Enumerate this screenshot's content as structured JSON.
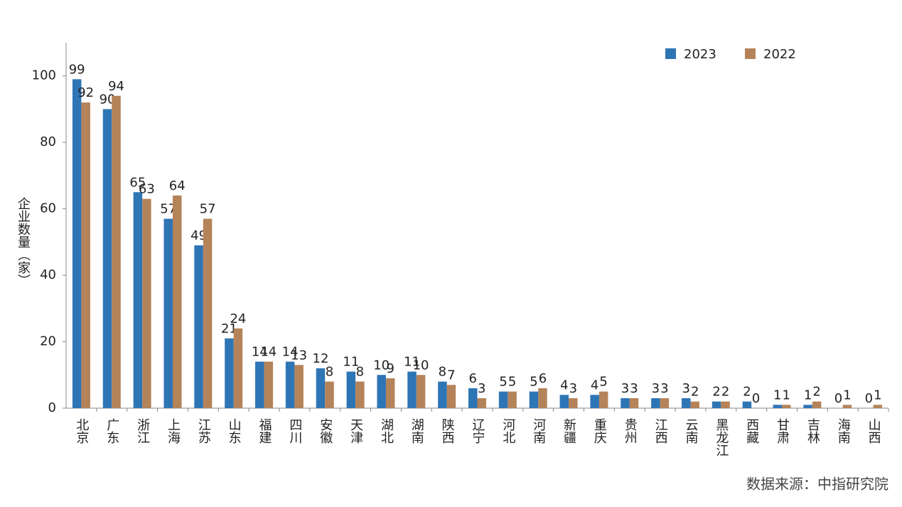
{
  "chart_data": {
    "type": "bar",
    "y_label": "企业数量（家）",
    "source": "数据来源：中指研究院",
    "categories": [
      "北京",
      "广东",
      "浙江",
      "上海",
      "江苏",
      "山东",
      "福建",
      "四川",
      "安徽",
      "天津",
      "湖北",
      "湖南",
      "陕西",
      "辽宁",
      "河北",
      "河南",
      "新疆",
      "重庆",
      "贵州",
      "江西",
      "云南",
      "黑龙江",
      "西藏",
      "甘肃",
      "吉林",
      "海南",
      "山西"
    ],
    "series": [
      {
        "name": "2023",
        "color": "#2e75b6",
        "values": [
          99,
          90,
          65,
          57,
          49,
          21,
          14,
          14,
          12,
          11,
          10,
          11,
          8,
          6,
          5,
          5,
          4,
          4,
          3,
          3,
          3,
          2,
          2,
          1,
          1,
          0,
          0
        ]
      },
      {
        "name": "2022",
        "color": "#b5835a",
        "values": [
          92,
          94,
          63,
          64,
          57,
          24,
          14,
          13,
          8,
          8,
          9,
          10,
          7,
          3,
          5,
          6,
          3,
          5,
          3,
          3,
          2,
          2,
          0,
          1,
          2,
          1,
          1
        ]
      }
    ],
    "ylim": [
      0,
      110
    ],
    "yticks": [
      0,
      20,
      40,
      60,
      80,
      100
    ],
    "grid": false,
    "legend": "top-right"
  }
}
